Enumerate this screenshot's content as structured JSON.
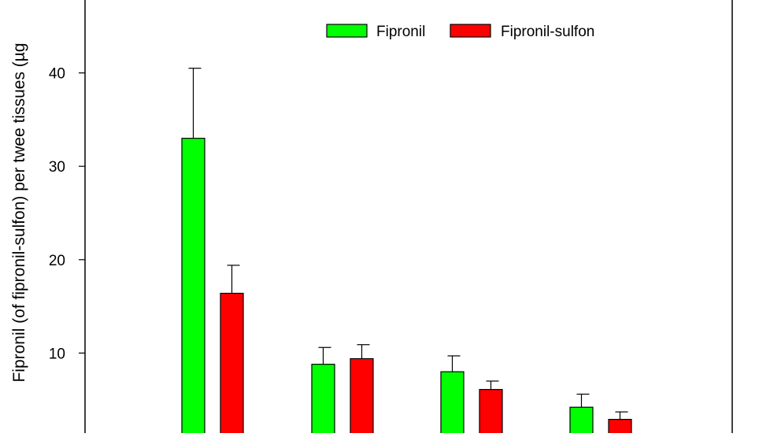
{
  "chart_data": {
    "type": "bar",
    "ylabel": "Fipronil (of fipronil-sulfon) per twee tissues (µg",
    "ylim": [
      0,
      50
    ],
    "yticks": [
      10,
      20,
      30,
      40
    ],
    "categories": [
      "",
      "",
      "",
      ""
    ],
    "series": [
      {
        "name": "Fipronil",
        "color": "#00ff00",
        "values": [
          33.0,
          8.8,
          8.0,
          4.2
        ],
        "errors": [
          7.5,
          1.8,
          1.7,
          1.4
        ]
      },
      {
        "name": "Fipronil-sulfon",
        "color": "#ff0000",
        "values": [
          16.4,
          9.4,
          6.1,
          2.9
        ],
        "errors": [
          3.0,
          1.5,
          0.9,
          0.8
        ]
      }
    ],
    "legend": "top-right"
  }
}
